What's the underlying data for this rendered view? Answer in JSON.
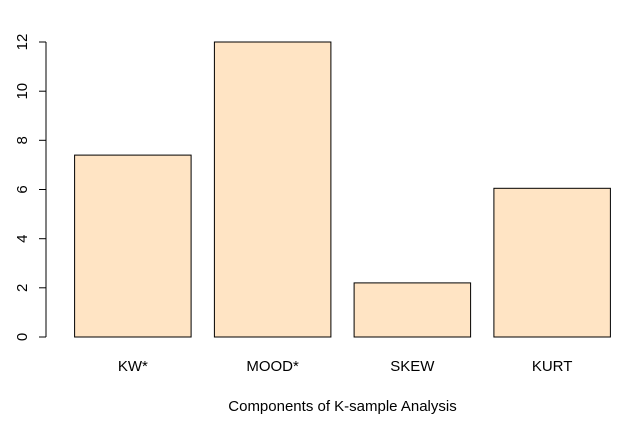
{
  "chart_data": {
    "type": "bar",
    "categories": [
      "KW*",
      "MOOD*",
      "SKEW",
      "KURT"
    ],
    "values": [
      7.4,
      12.0,
      2.2,
      6.05
    ],
    "title": "",
    "xlabel": "Components of K-sample Analysis",
    "ylabel": "",
    "ylim": [
      0,
      12
    ],
    "yticks": [
      0,
      2,
      4,
      6,
      8,
      10,
      12
    ],
    "grid": false,
    "legend": "none",
    "colors": {
      "bar_fill": "#FFE4C4",
      "bar_stroke": "#000000",
      "axis": "#000000",
      "background": "#FFFFFF"
    }
  }
}
